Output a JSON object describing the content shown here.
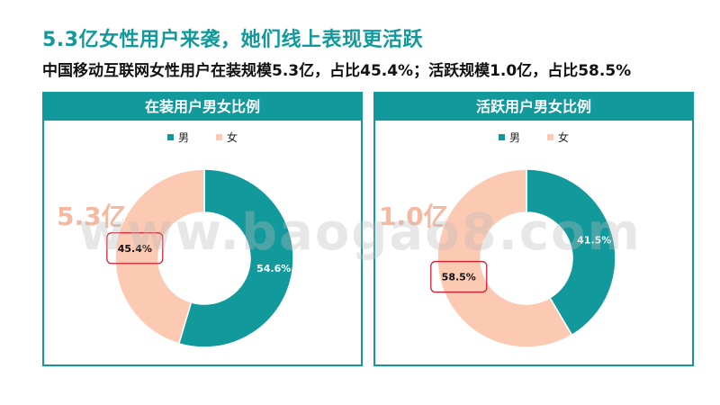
{
  "title": "5.3亿女性用户来袭，她们线上表现更活跃",
  "subtitle": "中国移动互联网女性用户在装规模5.3亿，占比45.4%；活跃规模1.0亿，占比58.5%",
  "watermark": "www.baogao8.com",
  "colors": {
    "male": "#12999b",
    "female": "#fcc9b3",
    "accent": "#12999b",
    "highlight_border": "#cc2233",
    "big_label": "#f6b89f"
  },
  "chart_data": [
    {
      "type": "pie",
      "variant": "donut",
      "title": "在装用户男女比例",
      "legend_position": "top",
      "side_label": "5.3亿",
      "categories": [
        "男",
        "女"
      ],
      "values": [
        54.6,
        45.4
      ],
      "labels": [
        "54.6%",
        "45.4%"
      ],
      "highlighted": "女"
    },
    {
      "type": "pie",
      "variant": "donut",
      "title": "活跃用户男女比例",
      "legend_position": "top",
      "side_label": "1.0亿",
      "categories": [
        "男",
        "女"
      ],
      "values": [
        41.5,
        58.5
      ],
      "labels": [
        "41.5%",
        "58.5%"
      ],
      "highlighted": "女"
    }
  ]
}
